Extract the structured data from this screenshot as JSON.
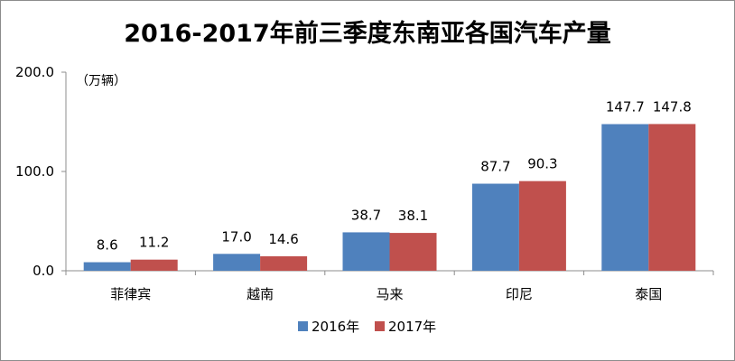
{
  "chart_data": {
    "type": "bar",
    "title": "2016-2017年前三季度东南亚各国汽车产量",
    "unit_label": "（万辆）",
    "categories": [
      "菲律宾",
      "越南",
      "马来",
      "印尼",
      "泰国"
    ],
    "series": [
      {
        "name": "2016年",
        "color": "#4f81bd",
        "values": [
          8.6,
          17.0,
          38.7,
          87.7,
          147.7
        ],
        "labels": [
          "8.6",
          "17.0",
          "38.7",
          "87.7",
          "147.7"
        ]
      },
      {
        "name": "2017年",
        "color": "#c0504d",
        "values": [
          11.2,
          14.6,
          38.1,
          90.3,
          147.8
        ],
        "labels": [
          "11.2",
          "14.6",
          "38.1",
          "90.3",
          "147.8"
        ]
      }
    ],
    "ylim": [
      0,
      200
    ],
    "yticks": [
      0,
      100,
      200
    ],
    "ytick_labels": [
      "0.0",
      "100.0",
      "200.0"
    ],
    "grid": false,
    "legend": "bottom"
  }
}
